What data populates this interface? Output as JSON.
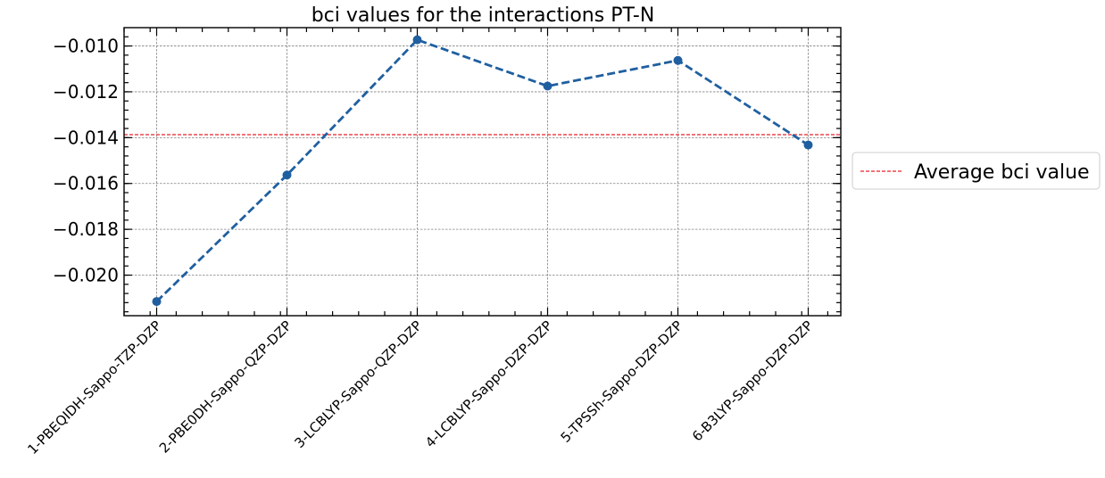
{
  "chart_data": {
    "type": "line",
    "title": "bci values for the interactions PT-N",
    "xlabel": "",
    "ylabel": "",
    "categories": [
      "1-PBEQIDH-Sappo-TZP-DZP",
      "2-PBE0DH-Sappo-QZP-DZP",
      "3-LCBLYP-Sappo-QZP-DZP",
      "4-LCBLYP-Sappo-DZP-DZP",
      "5-TPSSh-Sappo-DZP-DZP",
      "6-B3LYP-Sappo-DZP-DZP"
    ],
    "series": [
      {
        "values": [
          -0.02115,
          -0.01563,
          -0.00973,
          -0.01175,
          -0.01063,
          -0.01432
        ],
        "color": "#1f5fa0",
        "linestyle": "dashed",
        "marker": "circle"
      }
    ],
    "reference_lines": [
      {
        "name": "Average bci value",
        "y": -0.01387,
        "color": "#e8202a",
        "linestyle": "dashed"
      }
    ],
    "yticks": [
      -0.01,
      -0.012,
      -0.014,
      -0.016,
      -0.018,
      -0.02
    ],
    "ytick_labels": [
      "−0.010",
      "−0.012",
      "−0.014",
      "−0.016",
      "−0.018",
      "−0.020"
    ],
    "ylim": [
      -0.02177,
      -0.0092
    ],
    "xlim": [
      -0.25,
      5.25
    ],
    "grid": true,
    "legend": {
      "placement": "outside-right",
      "entries": [
        "Average bci value"
      ]
    }
  }
}
